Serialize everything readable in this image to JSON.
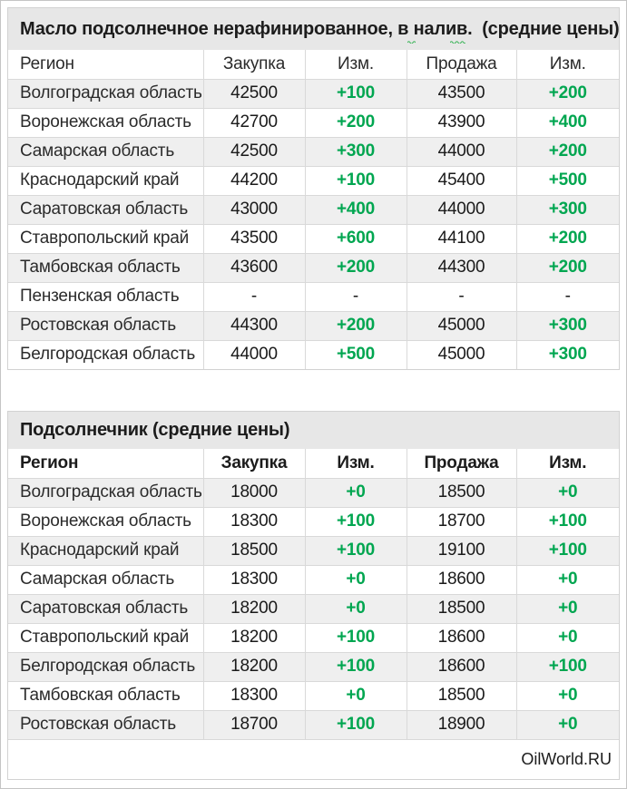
{
  "window": {
    "footer_brand": "OilWorld.RU"
  },
  "colors": {
    "positive_change": "#00a650",
    "title_bar_bg": "#e7e7e7",
    "row_stripe_bg": "#efefef",
    "grid_border": "#d9d9d9",
    "page_border": "#c4c4c4",
    "text": "#2b2b2b"
  },
  "tables": [
    {
      "title": "Масло подсолнечное нерафинированное, в налив.  (средние цены)",
      "columns": [
        "Регион",
        "Закупка",
        "Изм.",
        "Продажа",
        "Изм."
      ],
      "rows": [
        {
          "region": "Волгоградская область",
          "buy": "42500",
          "buy_chg": "+100",
          "sell": "43500",
          "sell_chg": "+200"
        },
        {
          "region": "Воронежская область",
          "buy": "42700",
          "buy_chg": "+200",
          "sell": "43900",
          "sell_chg": "+400"
        },
        {
          "region": "Самарская область",
          "buy": "42500",
          "buy_chg": "+300",
          "sell": "44000",
          "sell_chg": "+200"
        },
        {
          "region": "Краснодарский край",
          "buy": "44200",
          "buy_chg": "+100",
          "sell": "45400",
          "sell_chg": "+500"
        },
        {
          "region": "Саратовская область",
          "buy": "43000",
          "buy_chg": "+400",
          "sell": "44000",
          "sell_chg": "+300"
        },
        {
          "region": "Ставропольский край",
          "buy": "43500",
          "buy_chg": "+600",
          "sell": "44100",
          "sell_chg": "+200"
        },
        {
          "region": "Тамбовская область",
          "buy": "43600",
          "buy_chg": "+200",
          "sell": "44300",
          "sell_chg": "+200"
        },
        {
          "region": "Пензенская область",
          "buy": "-",
          "buy_chg": "-",
          "sell": "-",
          "sell_chg": "-"
        },
        {
          "region": "Ростовская область",
          "buy": "44300",
          "buy_chg": "+200",
          "sell": "45000",
          "sell_chg": "+300"
        },
        {
          "region": "Белгородская область",
          "buy": "44000",
          "buy_chg": "+500",
          "sell": "45000",
          "sell_chg": "+300"
        }
      ]
    },
    {
      "title": "Подсолнечник (средние цены)",
      "columns": [
        "Регион",
        "Закупка",
        "Изм.",
        "Продажа",
        "Изм."
      ],
      "rows": [
        {
          "region": "Волгоградская область",
          "buy": "18000",
          "buy_chg": "+0",
          "sell": "18500",
          "sell_chg": "+0"
        },
        {
          "region": "Воронежская область",
          "buy": "18300",
          "buy_chg": "+100",
          "sell": "18700",
          "sell_chg": "+100"
        },
        {
          "region": "Краснодарский край",
          "buy": "18500",
          "buy_chg": "+100",
          "sell": "19100",
          "sell_chg": "+100"
        },
        {
          "region": "Самарская область",
          "buy": "18300",
          "buy_chg": "+0",
          "sell": "18600",
          "sell_chg": "+0"
        },
        {
          "region": "Саратовская область",
          "buy": "18200",
          "buy_chg": "+0",
          "sell": "18500",
          "sell_chg": "+0"
        },
        {
          "region": "Ставропольский край",
          "buy": "18200",
          "buy_chg": "+100",
          "sell": "18600",
          "sell_chg": "+0"
        },
        {
          "region": "Белгородская область",
          "buy": "18200",
          "buy_chg": "+100",
          "sell": "18600",
          "sell_chg": "+100"
        },
        {
          "region": "Тамбовская область",
          "buy": "18300",
          "buy_chg": "+0",
          "sell": "18500",
          "sell_chg": "+0"
        },
        {
          "region": "Ростовская область",
          "buy": "18700",
          "buy_chg": "+100",
          "sell": "18900",
          "sell_chg": "+0"
        }
      ]
    }
  ]
}
